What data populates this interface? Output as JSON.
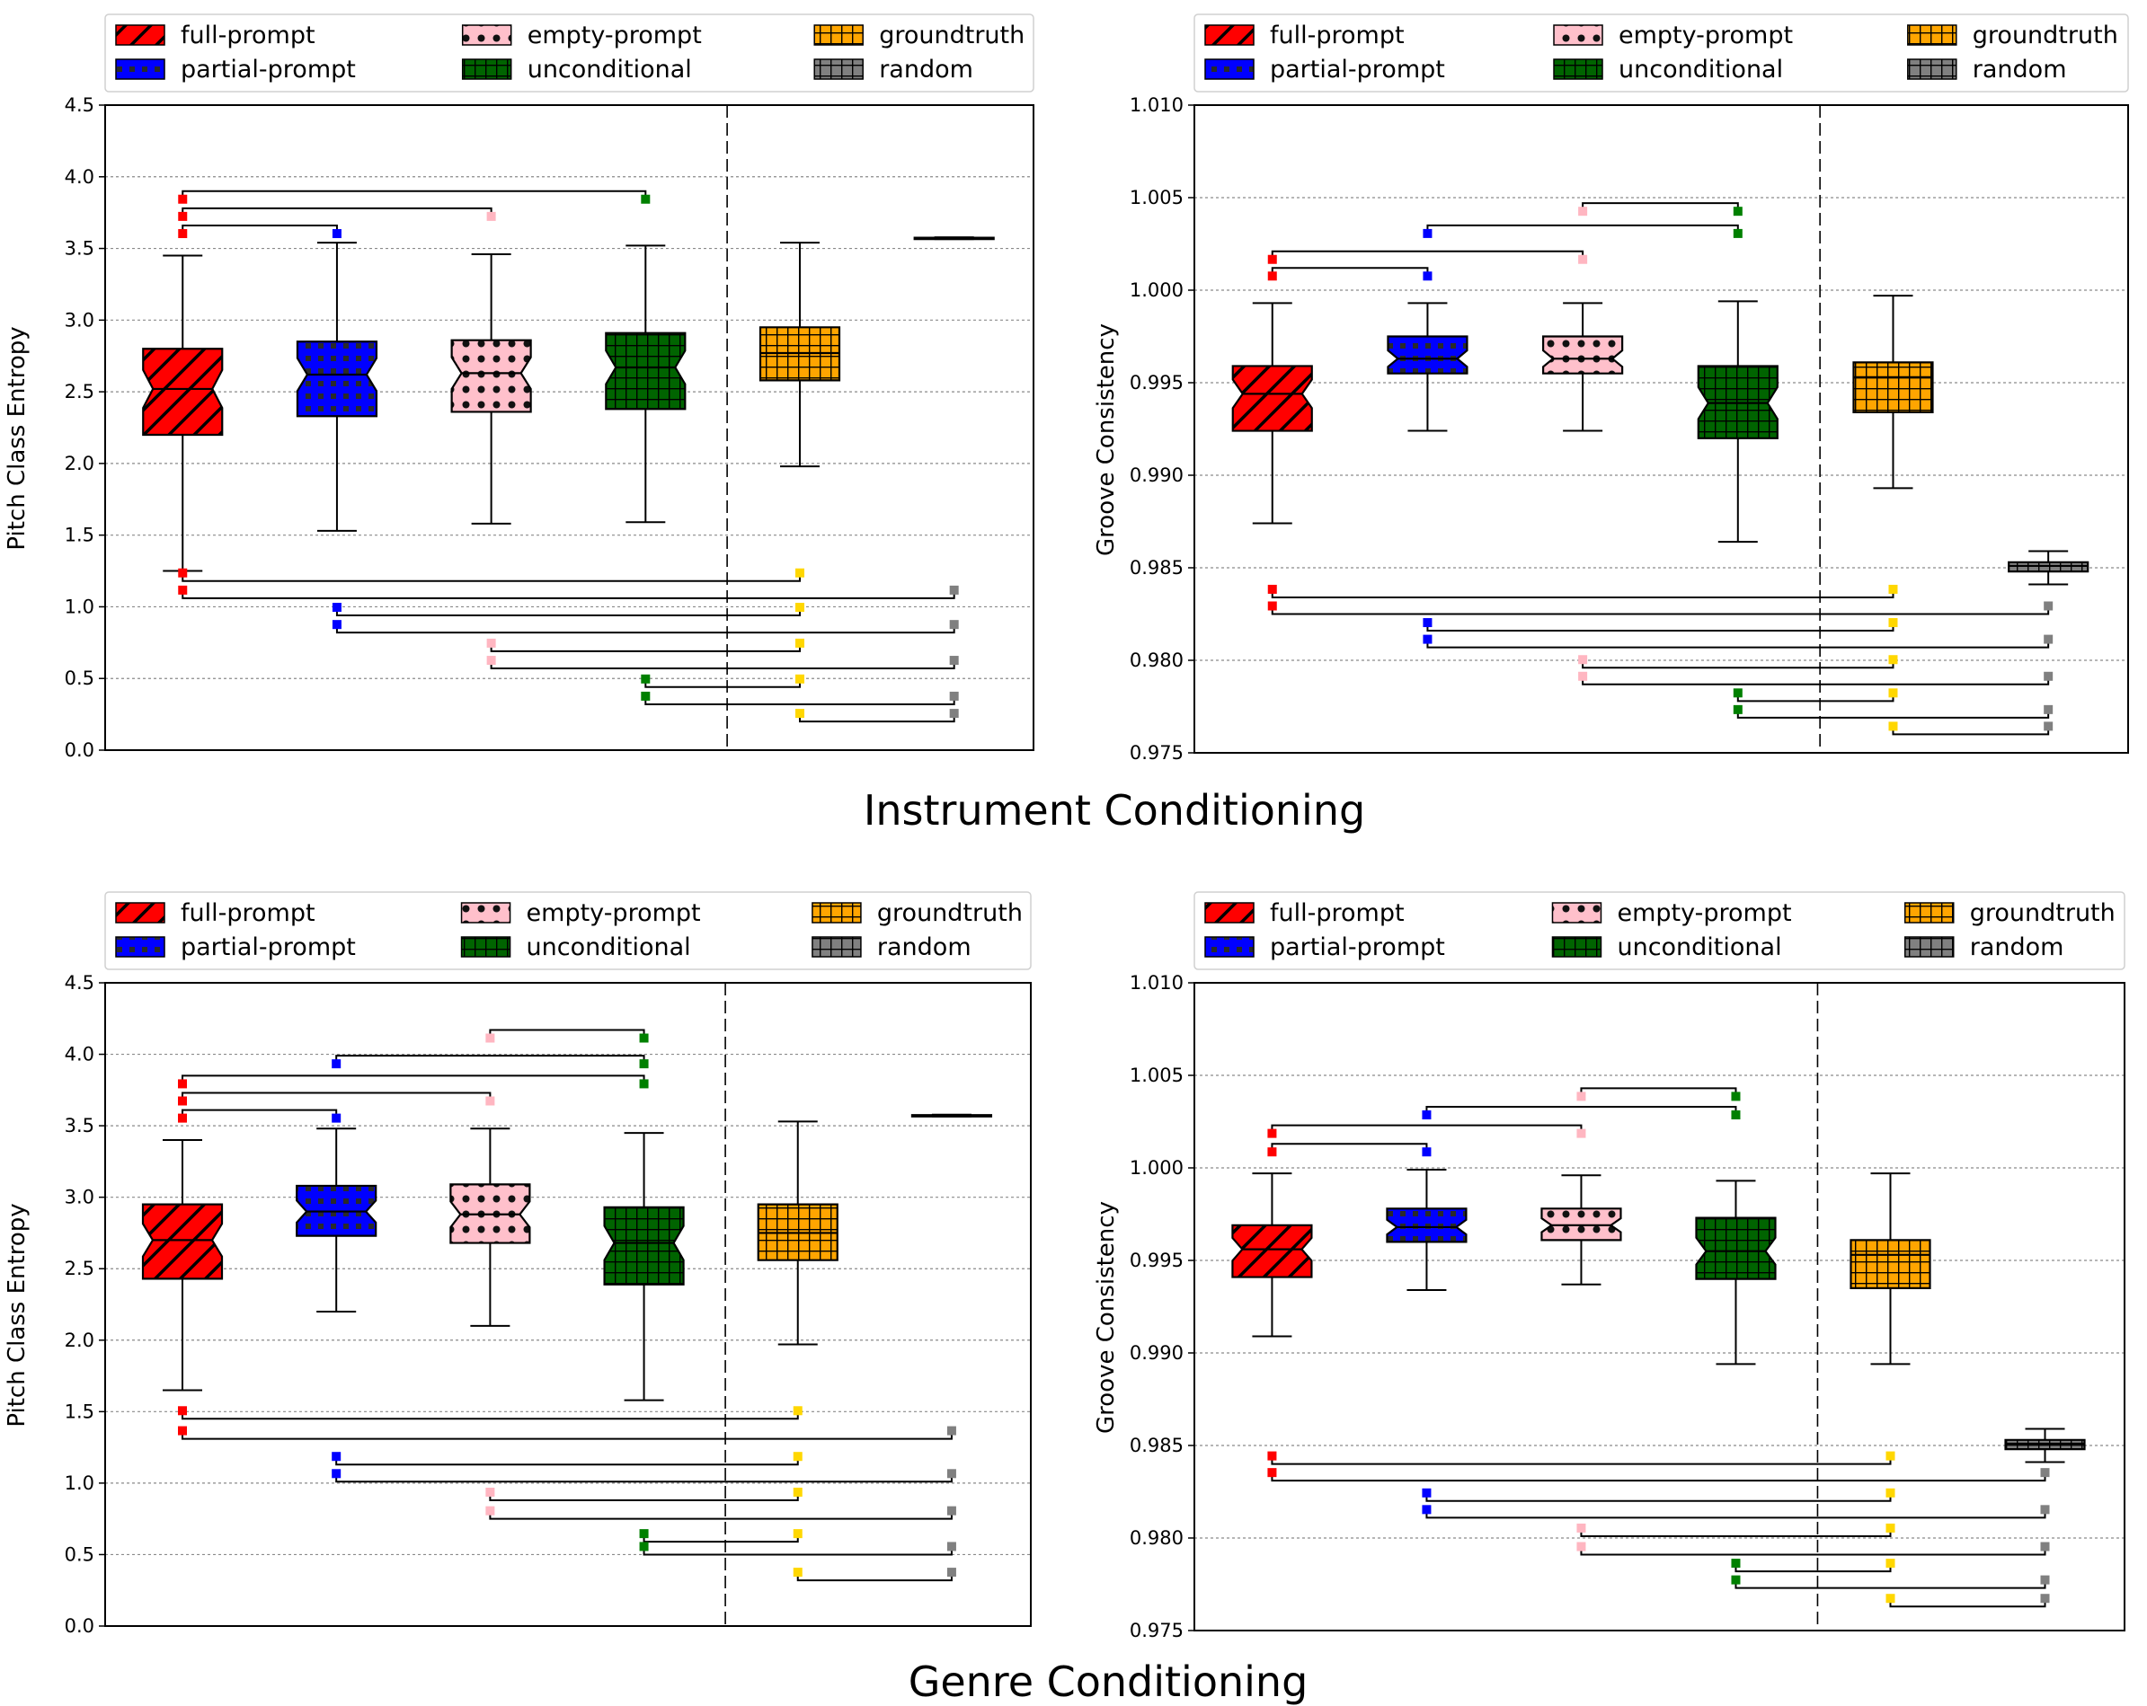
{
  "sections": [
    {
      "title": "Instrument Conditioning"
    },
    {
      "title": "Genre Conditioning"
    }
  ],
  "legend": [
    {
      "label": "full-prompt",
      "color": "#ff0000",
      "pattern": "stripes"
    },
    {
      "label": "partial-prompt",
      "color": "#0000ff",
      "pattern": "dots"
    },
    {
      "label": "empty-prompt",
      "color": "#ffc0cb",
      "pattern": "circles"
    },
    {
      "label": "unconditional",
      "color": "#006400",
      "pattern": "grid"
    },
    {
      "label": "groundtruth",
      "color": "#ffa500",
      "pattern": "grid"
    },
    {
      "label": "random",
      "color": "#808080",
      "pattern": "grid"
    }
  ],
  "chart_data": [
    {
      "type": "box",
      "section": "Instrument Conditioning",
      "ylabel": "Pitch Class Entropy",
      "ylim": [
        0.0,
        4.5
      ],
      "yticks": [
        "0.0",
        "0.5",
        "1.0",
        "1.5",
        "2.0",
        "2.5",
        "3.0",
        "3.5",
        "4.0",
        "4.5"
      ],
      "boxes": [
        {
          "name": "full-prompt",
          "q1": 2.2,
          "median": 2.52,
          "q3": 2.8,
          "whislo": 1.25,
          "whishi": 3.45,
          "notch": true
        },
        {
          "name": "partial-prompt",
          "q1": 2.33,
          "median": 2.62,
          "q3": 2.85,
          "whislo": 1.53,
          "whishi": 3.54,
          "notch": true
        },
        {
          "name": "empty-prompt",
          "q1": 2.36,
          "median": 2.63,
          "q3": 2.86,
          "whislo": 1.58,
          "whishi": 3.46,
          "notch": true
        },
        {
          "name": "unconditional",
          "q1": 2.38,
          "median": 2.67,
          "q3": 2.91,
          "whislo": 1.59,
          "whishi": 3.52,
          "notch": true
        },
        {
          "name": "groundtruth",
          "q1": 2.58,
          "median": 2.77,
          "q3": 2.95,
          "whislo": 1.98,
          "whishi": 3.54,
          "notch": false
        },
        {
          "name": "random",
          "q1": 3.565,
          "median": 3.57,
          "q3": 3.575,
          "whislo": 3.565,
          "whishi": 3.578,
          "notch": false
        }
      ],
      "brackets_top": [
        [
          0,
          1,
          3.66
        ],
        [
          0,
          2,
          3.78
        ],
        [
          0,
          3,
          3.9
        ]
      ],
      "brackets_bottom": [
        [
          0,
          4,
          1.18
        ],
        [
          0,
          5,
          1.06
        ],
        [
          1,
          4,
          0.94
        ],
        [
          1,
          5,
          0.82
        ],
        [
          2,
          4,
          0.69
        ],
        [
          2,
          5,
          0.57
        ],
        [
          3,
          4,
          0.44
        ],
        [
          3,
          5,
          0.32
        ],
        [
          4,
          5,
          0.2
        ]
      ]
    },
    {
      "type": "box",
      "section": "Instrument Conditioning",
      "ylabel": "Groove Consistency",
      "ylim": [
        0.975,
        1.01
      ],
      "yticks": [
        "0.975",
        "0.980",
        "0.985",
        "0.990",
        "0.995",
        "1.000",
        "1.005",
        "1.010"
      ],
      "boxes": [
        {
          "name": "full-prompt",
          "q1": 0.9924,
          "median": 0.9944,
          "q3": 0.9959,
          "whislo": 0.9874,
          "whishi": 0.9993,
          "notch": true
        },
        {
          "name": "partial-prompt",
          "q1": 0.9955,
          "median": 0.9963,
          "q3": 0.9975,
          "whislo": 0.9924,
          "whishi": 0.9993,
          "notch": true
        },
        {
          "name": "empty-prompt",
          "q1": 0.9955,
          "median": 0.9963,
          "q3": 0.9975,
          "whislo": 0.9924,
          "whishi": 0.9993,
          "notch": true
        },
        {
          "name": "unconditional",
          "q1": 0.992,
          "median": 0.9939,
          "q3": 0.9959,
          "whislo": 0.9864,
          "whishi": 0.9994,
          "notch": true
        },
        {
          "name": "groundtruth",
          "q1": 0.9934,
          "median": 0.9953,
          "q3": 0.9961,
          "whislo": 0.9893,
          "whishi": 0.9997,
          "notch": false
        },
        {
          "name": "random",
          "q1": 0.9848,
          "median": 0.9851,
          "q3": 0.9853,
          "whislo": 0.9841,
          "whishi": 0.9859,
          "notch": false
        }
      ],
      "brackets_top": [
        [
          0,
          1,
          1.0012
        ],
        [
          0,
          2,
          1.0021
        ],
        [
          1,
          3,
          1.0035
        ],
        [
          2,
          3,
          1.0047
        ]
      ],
      "brackets_bottom": [
        [
          0,
          4,
          0.9834
        ],
        [
          0,
          5,
          0.9825
        ],
        [
          1,
          4,
          0.9816
        ],
        [
          1,
          5,
          0.9807
        ],
        [
          2,
          4,
          0.9796
        ],
        [
          2,
          5,
          0.9787
        ],
        [
          3,
          4,
          0.9778
        ],
        [
          3,
          5,
          0.9769
        ],
        [
          4,
          5,
          0.976
        ]
      ]
    },
    {
      "type": "box",
      "section": "Genre Conditioning",
      "ylabel": "Pitch Class Entropy",
      "ylim": [
        0.0,
        4.5
      ],
      "yticks": [
        "0.0",
        "0.5",
        "1.0",
        "1.5",
        "2.0",
        "2.5",
        "3.0",
        "3.5",
        "4.0",
        "4.5"
      ],
      "boxes": [
        {
          "name": "full-prompt",
          "q1": 2.43,
          "median": 2.7,
          "q3": 2.95,
          "whislo": 1.65,
          "whishi": 3.4,
          "notch": true
        },
        {
          "name": "partial-prompt",
          "q1": 2.73,
          "median": 2.9,
          "q3": 3.08,
          "whislo": 2.2,
          "whishi": 3.48,
          "notch": true
        },
        {
          "name": "empty-prompt",
          "q1": 2.68,
          "median": 2.88,
          "q3": 3.09,
          "whislo": 2.1,
          "whishi": 3.48,
          "notch": true
        },
        {
          "name": "unconditional",
          "q1": 2.39,
          "median": 2.68,
          "q3": 2.93,
          "whislo": 1.58,
          "whishi": 3.45,
          "notch": true
        },
        {
          "name": "groundtruth",
          "q1": 2.56,
          "median": 2.75,
          "q3": 2.95,
          "whislo": 1.97,
          "whishi": 3.53,
          "notch": false
        },
        {
          "name": "random",
          "q1": 3.565,
          "median": 3.57,
          "q3": 3.575,
          "whislo": 3.565,
          "whishi": 3.578,
          "notch": false
        }
      ],
      "brackets_top": [
        [
          0,
          1,
          3.61
        ],
        [
          0,
          2,
          3.73
        ],
        [
          0,
          3,
          3.85
        ],
        [
          1,
          3,
          3.99
        ],
        [
          2,
          3,
          4.17
        ]
      ],
      "brackets_bottom": [
        [
          0,
          4,
          1.45
        ],
        [
          0,
          5,
          1.31
        ],
        [
          1,
          4,
          1.13
        ],
        [
          1,
          5,
          1.01
        ],
        [
          2,
          4,
          0.88
        ],
        [
          2,
          5,
          0.75
        ],
        [
          3,
          4,
          0.59
        ],
        [
          3,
          5,
          0.5
        ],
        [
          4,
          5,
          0.32
        ]
      ]
    },
    {
      "type": "box",
      "section": "Genre Conditioning",
      "ylabel": "Groove Consistency",
      "ylim": [
        0.975,
        1.01
      ],
      "yticks": [
        "0.975",
        "0.980",
        "0.985",
        "0.990",
        "0.995",
        "1.000",
        "1.005",
        "1.010"
      ],
      "boxes": [
        {
          "name": "full-prompt",
          "q1": 0.9941,
          "median": 0.9956,
          "q3": 0.9969,
          "whislo": 0.9909,
          "whishi": 0.9997,
          "notch": true
        },
        {
          "name": "partial-prompt",
          "q1": 0.996,
          "median": 0.9968,
          "q3": 0.9978,
          "whislo": 0.9934,
          "whishi": 0.9999,
          "notch": true
        },
        {
          "name": "empty-prompt",
          "q1": 0.9961,
          "median": 0.9969,
          "q3": 0.9978,
          "whislo": 0.9937,
          "whishi": 0.9996,
          "notch": true
        },
        {
          "name": "unconditional",
          "q1": 0.994,
          "median": 0.9955,
          "q3": 0.9973,
          "whislo": 0.9894,
          "whishi": 0.9993,
          "notch": true
        },
        {
          "name": "groundtruth",
          "q1": 0.9935,
          "median": 0.9953,
          "q3": 0.9961,
          "whislo": 0.9894,
          "whishi": 0.9997,
          "notch": false
        },
        {
          "name": "random",
          "q1": 0.9848,
          "median": 0.9851,
          "q3": 0.9853,
          "whislo": 0.9841,
          "whishi": 0.9859,
          "notch": false
        }
      ],
      "brackets_top": [
        [
          0,
          1,
          1.0013
        ],
        [
          0,
          2,
          1.0023
        ],
        [
          1,
          3,
          1.0033
        ],
        [
          2,
          3,
          1.0043
        ]
      ],
      "brackets_bottom": [
        [
          0,
          4,
          0.984
        ],
        [
          0,
          5,
          0.9831
        ],
        [
          1,
          4,
          0.982
        ],
        [
          1,
          5,
          0.9811
        ],
        [
          2,
          4,
          0.9801
        ],
        [
          2,
          5,
          0.9791
        ],
        [
          3,
          4,
          0.9782
        ],
        [
          3,
          5,
          0.9773
        ],
        [
          4,
          5,
          0.9763
        ]
      ]
    }
  ]
}
